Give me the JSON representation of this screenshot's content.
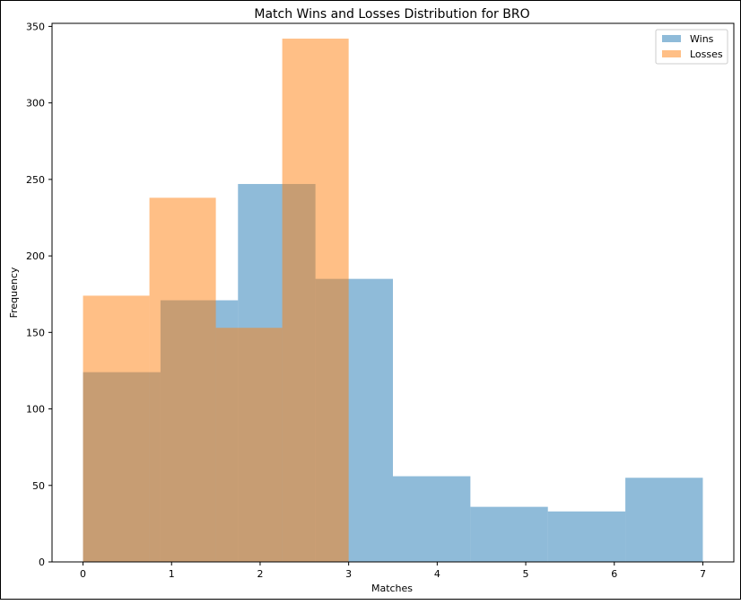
{
  "chart_data": {
    "type": "bar",
    "title": "Match Wins and Losses Distribution for BRO",
    "xlabel": "Matches",
    "ylabel": "Frequency",
    "xlim": [
      -0.35,
      7.35
    ],
    "ylim": [
      0,
      352
    ],
    "xticks": [
      0,
      1,
      2,
      3,
      4,
      5,
      6,
      7
    ],
    "yticks": [
      0,
      50,
      100,
      150,
      200,
      250,
      300,
      350
    ],
    "legend_position": "top-right",
    "series": [
      {
        "name": "Wins",
        "color": "#1f77b4",
        "opacity": 0.5,
        "bins": [
          {
            "x0": 0,
            "x1": 0.875,
            "value": 124
          },
          {
            "x0": 0.875,
            "x1": 1.75,
            "value": 171
          },
          {
            "x0": 1.75,
            "x1": 2.625,
            "value": 247
          },
          {
            "x0": 2.625,
            "x1": 3.5,
            "value": 185
          },
          {
            "x0": 3.5,
            "x1": 4.375,
            "value": 56
          },
          {
            "x0": 4.375,
            "x1": 5.25,
            "value": 36
          },
          {
            "x0": 5.25,
            "x1": 6.125,
            "value": 33
          },
          {
            "x0": 6.125,
            "x1": 7,
            "value": 55
          }
        ]
      },
      {
        "name": "Losses",
        "color": "#ff7f0e",
        "opacity": 0.5,
        "bins": [
          {
            "x0": 0,
            "x1": 0.75,
            "value": 174
          },
          {
            "x0": 0.75,
            "x1": 1.5,
            "value": 238
          },
          {
            "x0": 1.5,
            "x1": 2.25,
            "value": 153
          },
          {
            "x0": 2.25,
            "x1": 3,
            "value": 342
          }
        ]
      }
    ]
  }
}
